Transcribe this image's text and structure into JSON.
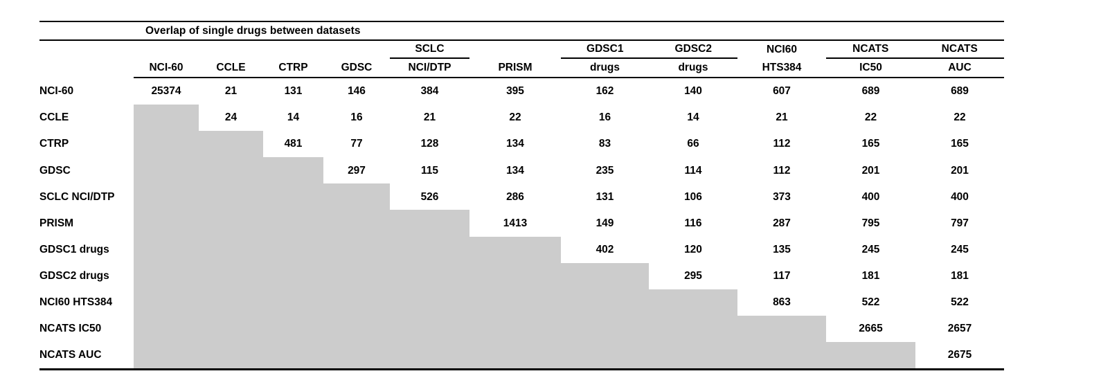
{
  "title": "Overlap of single drugs between datasets",
  "columns": [
    {
      "group": "",
      "label": "NCI-60"
    },
    {
      "group": "",
      "label": "CCLE"
    },
    {
      "group": "",
      "label": "CTRP"
    },
    {
      "group": "",
      "label": "GDSC"
    },
    {
      "group": "SCLC",
      "label": "NCI/DTP"
    },
    {
      "group": "",
      "label": "PRISM"
    },
    {
      "group": "GDSC1",
      "label": "drugs"
    },
    {
      "group": "GDSC2",
      "label": "drugs"
    },
    {
      "group": "NCI60",
      "label": "HTS384"
    },
    {
      "group": "NCATS",
      "label": "IC50"
    },
    {
      "group": "NCATS",
      "label": "AUC"
    }
  ],
  "rows": [
    {
      "label": "NCI-60",
      "values": [
        25374,
        21,
        131,
        146,
        384,
        395,
        162,
        140,
        607,
        689,
        689
      ]
    },
    {
      "label": "CCLE",
      "values": [
        null,
        24,
        14,
        16,
        21,
        22,
        16,
        14,
        21,
        22,
        22
      ]
    },
    {
      "label": "CTRP",
      "values": [
        null,
        null,
        481,
        77,
        128,
        134,
        83,
        66,
        112,
        165,
        165
      ]
    },
    {
      "label": "GDSC",
      "values": [
        null,
        null,
        null,
        297,
        115,
        134,
        235,
        114,
        112,
        201,
        201
      ]
    },
    {
      "label": "SCLC NCI/DTP",
      "values": [
        null,
        null,
        null,
        null,
        526,
        286,
        131,
        106,
        373,
        400,
        400
      ]
    },
    {
      "label": "PRISM",
      "values": [
        null,
        null,
        null,
        null,
        null,
        1413,
        149,
        116,
        287,
        795,
        797
      ]
    },
    {
      "label": "GDSC1 drugs",
      "values": [
        null,
        null,
        null,
        null,
        null,
        null,
        402,
        120,
        135,
        245,
        245
      ]
    },
    {
      "label": "GDSC2 drugs",
      "values": [
        null,
        null,
        null,
        null,
        null,
        null,
        null,
        295,
        117,
        181,
        181
      ]
    },
    {
      "label": "NCI60 HTS384",
      "values": [
        null,
        null,
        null,
        null,
        null,
        null,
        null,
        null,
        863,
        522,
        522
      ]
    },
    {
      "label": "NCATS IC50",
      "values": [
        null,
        null,
        null,
        null,
        null,
        null,
        null,
        null,
        null,
        2665,
        2657
      ]
    },
    {
      "label": "NCATS AUC",
      "values": [
        null,
        null,
        null,
        null,
        null,
        null,
        null,
        null,
        null,
        null,
        2675
      ]
    }
  ],
  "colors": {
    "shaded_cell": "#cccccc",
    "rule": "#000000",
    "text": "#000000",
    "background": "#ffffff"
  }
}
